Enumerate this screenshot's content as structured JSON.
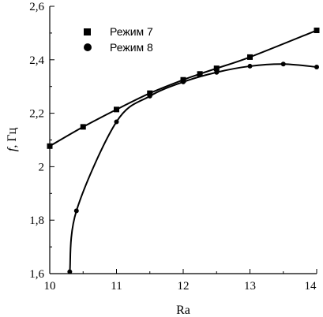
{
  "chart_data": {
    "type": "line",
    "title": "",
    "xlabel": "Ra",
    "ylabel_italic": "f",
    "ylabel_rest": ", Гц",
    "xlim": [
      10,
      14
    ],
    "ylim": [
      1.6,
      2.6
    ],
    "xticks": [
      10,
      11,
      12,
      13,
      14
    ],
    "xtick_labels": [
      "10",
      "11",
      "12",
      "13",
      "14"
    ],
    "yticks": [
      1.6,
      1.8,
      2.0,
      2.2,
      2.4,
      2.6
    ],
    "ytick_labels": [
      "1,6",
      "1,8",
      "2",
      "2,2",
      "2,4",
      "2,6"
    ],
    "grid": false,
    "legend_position": "top-left",
    "series": [
      {
        "name": "Режим 7",
        "marker": "square",
        "x": [
          10.0,
          10.5,
          11.0,
          11.5,
          12.0,
          12.25,
          12.5,
          13.0,
          14.0
        ],
        "y": [
          2.077,
          2.149,
          2.214,
          2.275,
          2.325,
          2.347,
          2.368,
          2.41,
          2.51
        ]
      },
      {
        "name": "Режим 8",
        "marker": "circle",
        "x": [
          10.3,
          10.4,
          11.0,
          11.5,
          12.0,
          12.5,
          13.0,
          13.5,
          14.0
        ],
        "y": [
          1.607,
          1.835,
          2.168,
          2.264,
          2.317,
          2.353,
          2.376,
          2.384,
          2.373
        ]
      }
    ]
  }
}
